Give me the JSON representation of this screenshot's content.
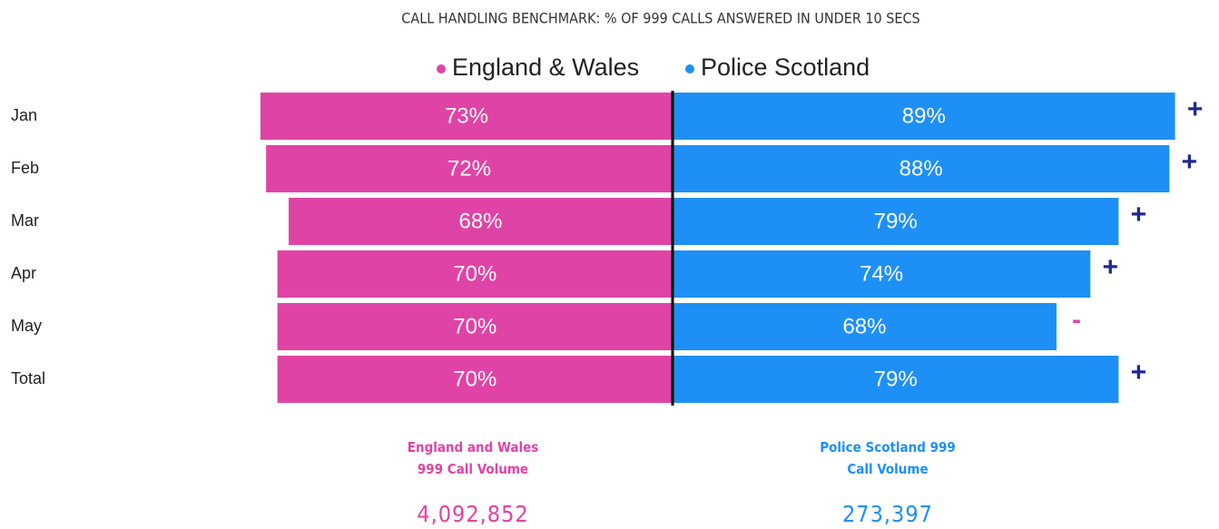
{
  "chart_data": {
    "type": "bar",
    "title": "CALL HANDLING BENCHMARK: % OF 999 CALLS ANSWERED IN UNDER 10 SECS",
    "categories": [
      "Jan",
      "Feb",
      "Mar",
      "Apr",
      "May",
      "Total"
    ],
    "series": [
      {
        "name": "England & Wales",
        "color": "#e043a6",
        "values": [
          73,
          72,
          68,
          70,
          70,
          70
        ],
        "value_labels": [
          "73%",
          "72%",
          "68%",
          "70%",
          "70%",
          "70%"
        ]
      },
      {
        "name": "Police Scotland",
        "color": "#1e90f5",
        "values": [
          89,
          88,
          79,
          74,
          68,
          79
        ],
        "value_labels": [
          "89%",
          "88%",
          "79%",
          "74%",
          "68%",
          "79%"
        ],
        "indicators": [
          "+",
          "+",
          "+",
          "+",
          "-",
          "+"
        ],
        "indicator_colors": [
          "#1f2a8c",
          "#1f2a8c",
          "#1f2a8c",
          "#1f2a8c",
          "#e043a6",
          "#1f2a8c"
        ]
      }
    ]
  },
  "cards": [
    {
      "title": "England and Wales 999 Call Volume",
      "value": 4092852,
      "value_label": "4,092,852",
      "color": "#e043a6"
    },
    {
      "title": "Police Scotland 999 Call Volume",
      "value": 273397,
      "value_label": "273,397",
      "color": "#1e90f5"
    }
  ]
}
